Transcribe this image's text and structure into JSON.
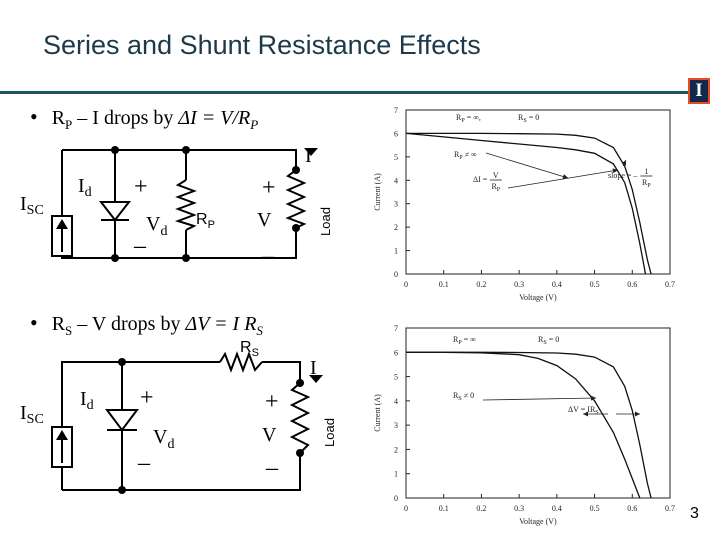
{
  "slide": {
    "title": "Series and Shunt Resistance Effects",
    "number": "3",
    "logo_text": "I",
    "colors": {
      "title": "#1d3a4a",
      "rule": "#1d5466",
      "logo_bg": "#13294b",
      "logo_border": "#e84a27"
    }
  },
  "bullets": [
    {
      "text_parts": [
        "R",
        "P",
        " – I drops by ",
        "ΔI = V/R",
        "P"
      ]
    },
    {
      "text_parts": [
        "R",
        "S",
        " – V drops by ",
        "ΔV = I R",
        "S"
      ]
    }
  ],
  "circuit_shunt": {
    "source_label": "I",
    "source_sub": "SC",
    "diode_label": "I",
    "diode_sub": "d",
    "vd_label": "V",
    "vd_sub": "d",
    "plus": "+",
    "minus": "–",
    "rp_label": "R",
    "rp_sub": "P",
    "v_label": "V",
    "i_label": "I",
    "load_label": "Load"
  },
  "circuit_series": {
    "source_label": "I",
    "source_sub": "SC",
    "diode_label": "I",
    "diode_sub": "d",
    "vd_label": "V",
    "vd_sub": "d",
    "plus": "+",
    "minus": "–",
    "rs_label": "R",
    "rs_sub": "S",
    "v_label": "V",
    "i_label": "I",
    "load_label": "Load"
  },
  "chart_data": [
    {
      "type": "line",
      "xlabel": "Voltage (V)",
      "ylabel": "Current (A)",
      "xlim": [
        0,
        0.7
      ],
      "ylim": [
        0,
        7
      ],
      "x_ticks": [
        "0",
        "0.1",
        "0.2",
        "0.3",
        "0.4",
        "0.5",
        "0.6",
        "0.7"
      ],
      "y_ticks": [
        "0",
        "1",
        "2",
        "3",
        "4",
        "5",
        "6",
        "7"
      ],
      "grid": false,
      "series": [
        {
          "x": [
            0,
            0.1,
            0.2,
            0.3,
            0.4,
            0.45,
            0.5,
            0.55,
            0.58,
            0.6,
            0.62,
            0.64,
            0.65
          ],
          "y": [
            6.0,
            6.0,
            6.0,
            5.99,
            5.97,
            5.92,
            5.8,
            5.4,
            4.6,
            3.6,
            2.2,
            0.6,
            0
          ]
        },
        {
          "x": [
            0,
            0.1,
            0.2,
            0.3,
            0.4,
            0.45,
            0.5,
            0.55,
            0.58,
            0.6,
            0.62,
            0.635
          ],
          "y": [
            6.0,
            5.85,
            5.7,
            5.55,
            5.4,
            5.3,
            5.15,
            4.7,
            3.9,
            2.8,
            1.3,
            0
          ]
        }
      ],
      "annotations": [
        {
          "text_parts": [
            "R",
            "P",
            " = ∞,"
          ],
          "at": [
            0.3,
            6.6
          ]
        },
        {
          "text_parts": [
            "R",
            "S",
            " = 0"
          ],
          "at": [
            0.47,
            6.6
          ]
        },
        {
          "text_parts": [
            "R",
            "P",
            " ≠ ∞"
          ],
          "at": [
            0.33,
            4.8
          ]
        },
        {
          "text_parts": [
            "ΔI = "
          ],
          "fraction": [
            "V",
            "R",
            "P"
          ],
          "at": [
            0.56,
            3.8
          ]
        },
        {
          "text_parts": [
            "slope = – "
          ],
          "fraction": [
            "1",
            "R",
            "P"
          ],
          "at": [
            0.88,
            3.8
          ]
        }
      ]
    },
    {
      "type": "line",
      "xlabel": "Voltage (V)",
      "ylabel": "Current (A)",
      "xlim": [
        0,
        0.7
      ],
      "ylim": [
        0,
        7
      ],
      "x_ticks": [
        "0",
        "0.1",
        "0.2",
        "0.3",
        "0.4",
        "0.5",
        "0.6",
        "0.7"
      ],
      "y_ticks": [
        "0",
        "1",
        "2",
        "3",
        "4",
        "5",
        "6",
        "7"
      ],
      "grid": false,
      "series": [
        {
          "x": [
            0,
            0.1,
            0.2,
            0.3,
            0.4,
            0.45,
            0.5,
            0.55,
            0.58,
            0.6,
            0.62,
            0.64,
            0.65
          ],
          "y": [
            6.0,
            6.0,
            6.0,
            5.99,
            5.97,
            5.92,
            5.8,
            5.4,
            4.6,
            3.6,
            2.2,
            0.6,
            0
          ]
        },
        {
          "x": [
            0,
            0.1,
            0.2,
            0.3,
            0.35,
            0.4,
            0.45,
            0.5,
            0.55,
            0.58,
            0.6,
            0.62
          ],
          "y": [
            6.0,
            6.0,
            5.98,
            5.9,
            5.75,
            5.45,
            4.9,
            4.0,
            2.7,
            1.6,
            0.8,
            0
          ]
        }
      ],
      "annotations": [
        {
          "text_parts": [
            "R",
            "P",
            " = ∞"
          ],
          "at": [
            0.33,
            6.6
          ]
        },
        {
          "text_parts": [
            "R",
            "S",
            " = 0"
          ],
          "at": [
            0.5,
            6.6
          ]
        },
        {
          "text_parts": [
            "R",
            "S",
            " ≠ 0"
          ],
          "at": [
            0.23,
            4.2
          ]
        },
        {
          "text_parts": [
            "ΔV = IR",
            "S"
          ],
          "at": [
            0.53,
            3.9
          ]
        }
      ]
    }
  ]
}
